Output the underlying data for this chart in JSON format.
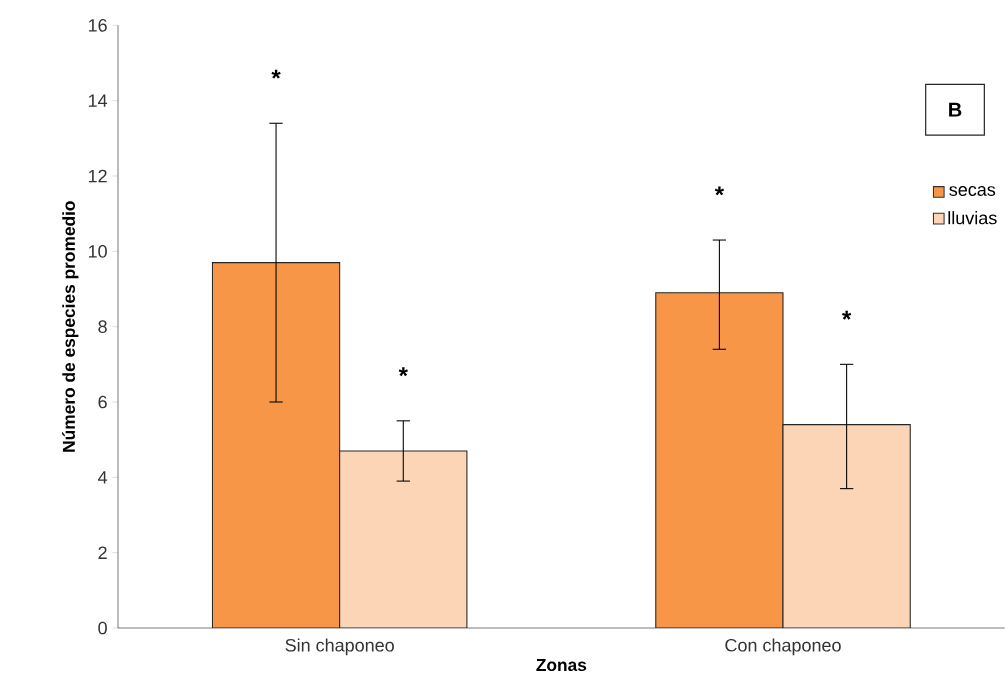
{
  "chart_data": {
    "type": "bar",
    "xlabel": "Zonas",
    "ylabel": "Número de especies  promedio",
    "categories": [
      "Sin chaponeo",
      "Con chaponeo"
    ],
    "series": [
      {
        "name": "secas",
        "color": "#f79646",
        "values": [
          9.7,
          8.9
        ],
        "errors": [
          [
            6.0,
            13.4
          ],
          [
            7.4,
            10.3
          ]
        ]
      },
      {
        "name": "lluvias",
        "color": "#fbd5b5",
        "values": [
          4.7,
          5.4
        ],
        "errors": [
          [
            3.9,
            5.5
          ],
          [
            3.7,
            7.0
          ]
        ]
      }
    ],
    "ylim": [
      0,
      16
    ],
    "yticks": [
      0,
      2,
      4,
      6,
      8,
      10,
      12,
      14,
      16
    ],
    "grid": false,
    "legend": "right",
    "annotations": [
      "B",
      "*",
      "*",
      "*",
      "*"
    ]
  }
}
